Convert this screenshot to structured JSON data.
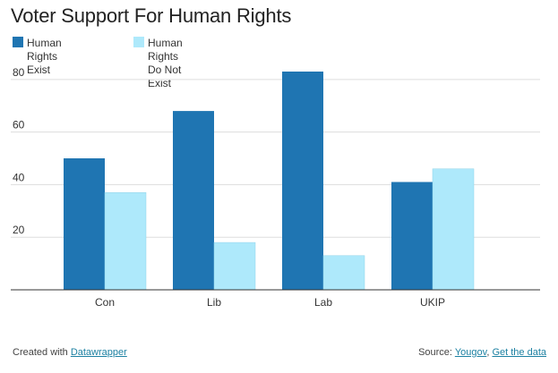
{
  "chart_data": {
    "type": "bar",
    "title": "Voter Support For Human Rights",
    "categories": [
      "Con",
      "Lib",
      "Lab",
      "UKIP"
    ],
    "series": [
      {
        "name": "Human Rights Exist",
        "name_lines": [
          "Human Rights",
          "Exist"
        ],
        "color": "#1f75b2",
        "values": [
          50,
          68,
          83,
          41
        ]
      },
      {
        "name": "Human Rights Do Not Exist",
        "name_lines": [
          "Human Rights Do Not Exist"
        ],
        "color": "#aee9fb",
        "values": [
          37,
          18,
          13,
          46
        ]
      }
    ],
    "y_ticks": [
      20,
      40,
      60,
      80
    ],
    "ylim": [
      0,
      83
    ],
    "grid": true,
    "legend_position": "top-left"
  },
  "footer": {
    "created_prefix": "Created with ",
    "created_link": "Datawrapper",
    "source_prefix": "Source: ",
    "source_link": "Yougov",
    "source_sep": ", ",
    "data_link": "Get the data"
  }
}
